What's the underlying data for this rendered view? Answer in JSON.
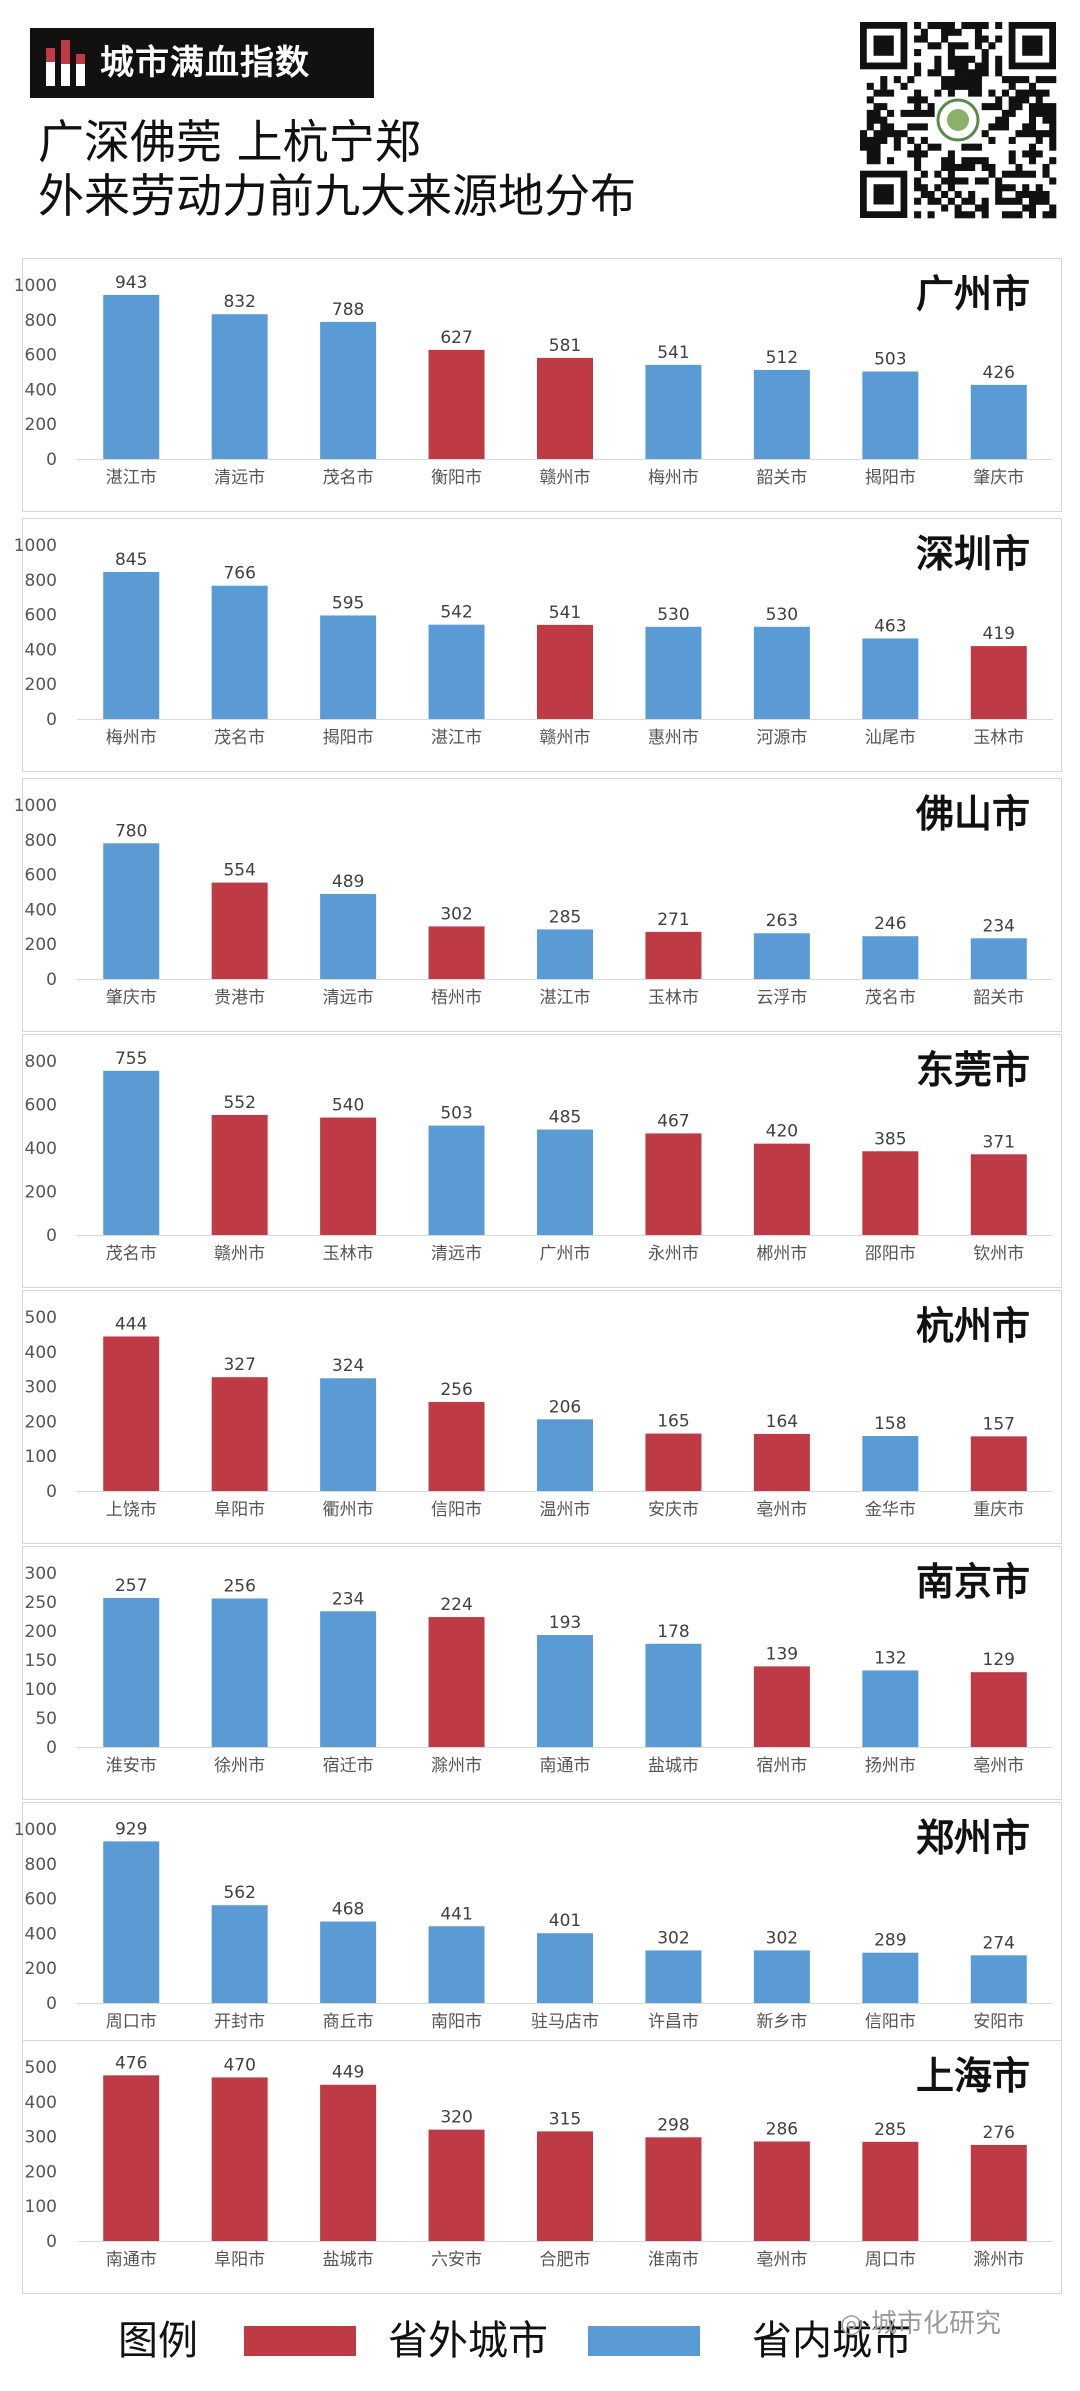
{
  "brand": {
    "name": "城市满血指数",
    "icon": "bar-logo-icon"
  },
  "headline": {
    "line1": "广深佛莞 上杭宁郑",
    "line2": "外来劳动力前九大来源地分布"
  },
  "qr": {
    "icon": "qr-code-icon"
  },
  "colors": {
    "outside": "#BE3A45",
    "inside": "#5B9BD5",
    "axis_text": "#555555",
    "value_text": "#404040"
  },
  "legend": {
    "title": "图例",
    "outside_label": "省外城市",
    "inside_label": "省内城市"
  },
  "watermark": "城市化研究",
  "chart_data": [
    {
      "type": "bar",
      "title": "广州市",
      "ylim": [
        0,
        1000
      ],
      "yticks": [
        0,
        200,
        400,
        600,
        800,
        1000
      ],
      "categories": [
        "湛江市",
        "清远市",
        "茂名市",
        "衡阳市",
        "赣州市",
        "梅州市",
        "韶关市",
        "揭阳市",
        "肇庆市"
      ],
      "values": [
        943,
        832,
        788,
        627,
        581,
        541,
        512,
        503,
        426
      ],
      "groups": [
        "inside",
        "inside",
        "inside",
        "outside",
        "outside",
        "inside",
        "inside",
        "inside",
        "inside"
      ]
    },
    {
      "type": "bar",
      "title": "深圳市",
      "ylim": [
        0,
        1000
      ],
      "yticks": [
        0,
        200,
        400,
        600,
        800,
        1000
      ],
      "categories": [
        "梅州市",
        "茂名市",
        "揭阳市",
        "湛江市",
        "赣州市",
        "惠州市",
        "河源市",
        "汕尾市",
        "玉林市"
      ],
      "values": [
        845,
        766,
        595,
        542,
        541,
        530,
        530,
        463,
        419
      ],
      "groups": [
        "inside",
        "inside",
        "inside",
        "inside",
        "outside",
        "inside",
        "inside",
        "inside",
        "outside"
      ]
    },
    {
      "type": "bar",
      "title": "佛山市",
      "ylim": [
        0,
        1000
      ],
      "yticks": [
        0,
        200,
        400,
        600,
        800,
        1000
      ],
      "categories": [
        "肇庆市",
        "贵港市",
        "清远市",
        "梧州市",
        "湛江市",
        "玉林市",
        "云浮市",
        "茂名市",
        "韶关市"
      ],
      "values": [
        780,
        554,
        489,
        302,
        285,
        271,
        263,
        246,
        234
      ],
      "groups": [
        "inside",
        "outside",
        "inside",
        "outside",
        "inside",
        "outside",
        "inside",
        "inside",
        "inside"
      ]
    },
    {
      "type": "bar",
      "title": "东莞市",
      "ylim": [
        0,
        800
      ],
      "yticks": [
        0,
        200,
        400,
        600,
        800
      ],
      "categories": [
        "茂名市",
        "赣州市",
        "玉林市",
        "清远市",
        "广州市",
        "永州市",
        "郴州市",
        "邵阳市",
        "钦州市"
      ],
      "values": [
        755,
        552,
        540,
        503,
        485,
        467,
        420,
        385,
        371
      ],
      "groups": [
        "inside",
        "outside",
        "outside",
        "inside",
        "inside",
        "outside",
        "outside",
        "outside",
        "outside"
      ]
    },
    {
      "type": "bar",
      "title": "杭州市",
      "ylim": [
        0,
        500
      ],
      "yticks": [
        0,
        100,
        200,
        300,
        400,
        500
      ],
      "categories": [
        "上饶市",
        "阜阳市",
        "衢州市",
        "信阳市",
        "温州市",
        "安庆市",
        "亳州市",
        "金华市",
        "重庆市"
      ],
      "values": [
        444,
        327,
        324,
        256,
        206,
        165,
        164,
        158,
        157
      ],
      "groups": [
        "outside",
        "outside",
        "inside",
        "outside",
        "inside",
        "outside",
        "outside",
        "inside",
        "outside"
      ]
    },
    {
      "type": "bar",
      "title": "南京市",
      "ylim": [
        0,
        300
      ],
      "yticks": [
        0,
        50,
        100,
        150,
        200,
        250,
        300
      ],
      "categories": [
        "淮安市",
        "徐州市",
        "宿迁市",
        "滁州市",
        "南通市",
        "盐城市",
        "宿州市",
        "扬州市",
        "亳州市"
      ],
      "values": [
        257,
        256,
        234,
        224,
        193,
        178,
        139,
        132,
        129
      ],
      "groups": [
        "inside",
        "inside",
        "inside",
        "outside",
        "inside",
        "inside",
        "outside",
        "inside",
        "outside"
      ]
    },
    {
      "type": "bar",
      "title": "郑州市",
      "ylim": [
        0,
        1000
      ],
      "yticks": [
        0,
        200,
        400,
        600,
        800,
        1000
      ],
      "categories": [
        "周口市",
        "开封市",
        "商丘市",
        "南阳市",
        "驻马店市",
        "许昌市",
        "新乡市",
        "信阳市",
        "安阳市"
      ],
      "values": [
        929,
        562,
        468,
        441,
        401,
        302,
        302,
        289,
        274
      ],
      "groups": [
        "inside",
        "inside",
        "inside",
        "inside",
        "inside",
        "inside",
        "inside",
        "inside",
        "inside"
      ]
    },
    {
      "type": "bar",
      "title": "上海市",
      "ylim": [
        0,
        500
      ],
      "yticks": [
        0,
        100,
        200,
        300,
        400,
        500
      ],
      "categories": [
        "南通市",
        "阜阳市",
        "盐城市",
        "六安市",
        "合肥市",
        "淮南市",
        "亳州市",
        "周口市",
        "滁州市"
      ],
      "values": [
        476,
        470,
        449,
        320,
        315,
        298,
        286,
        285,
        276
      ],
      "groups": [
        "outside",
        "outside",
        "outside",
        "outside",
        "outside",
        "outside",
        "outside",
        "outside",
        "outside"
      ]
    }
  ]
}
